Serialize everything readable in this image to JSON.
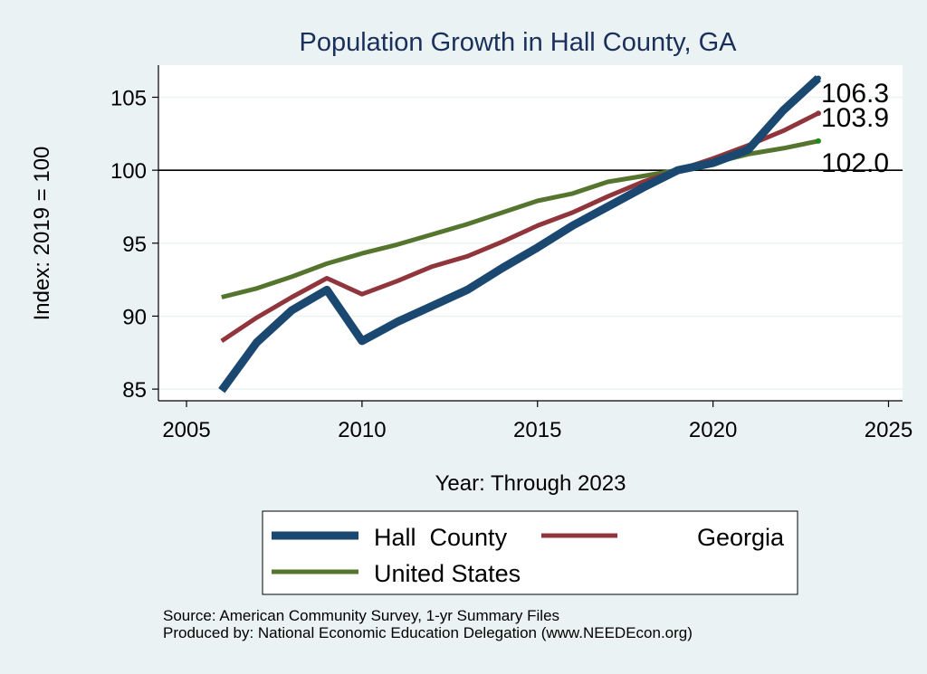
{
  "chart_data": {
    "type": "line",
    "title": "Population Growth in Hall County, GA",
    "xlabel": "Year: Through 2023",
    "ylabel": "Index: 2019 = 100",
    "xlim": [
      2004.2,
      2025.4
    ],
    "ylim": [
      84.2,
      107.2
    ],
    "xticks": [
      2005,
      2010,
      2015,
      2020,
      2025
    ],
    "yticks": [
      85,
      90,
      95,
      100,
      105
    ],
    "reference_line": 100,
    "grid": true,
    "legend_placement": "bottom",
    "x": [
      2006,
      2007,
      2008,
      2009,
      2010,
      2011,
      2012,
      2013,
      2014,
      2015,
      2016,
      2017,
      2018,
      2019,
      2020,
      2021,
      2022,
      2023
    ],
    "series": [
      {
        "name": "Hall  County",
        "color": "#1a4870",
        "values": [
          84.9,
          88.2,
          90.4,
          91.8,
          88.3,
          89.6,
          90.7,
          91.8,
          93.3,
          94.7,
          96.2,
          97.5,
          98.8,
          100.0,
          100.5,
          101.4,
          104.1,
          106.3
        ],
        "end_label": "106.3"
      },
      {
        "name": "Georgia",
        "color": "#90353b",
        "values": [
          88.3,
          89.9,
          91.3,
          92.6,
          91.5,
          92.4,
          93.4,
          94.1,
          95.1,
          96.2,
          97.1,
          98.2,
          99.2,
          100.0,
          100.8,
          101.7,
          102.7,
          103.9
        ],
        "end_label": "103.9"
      },
      {
        "name": "United States",
        "color": "#55752f",
        "values": [
          91.3,
          91.9,
          92.7,
          93.6,
          94.3,
          94.9,
          95.6,
          96.3,
          97.1,
          97.9,
          98.4,
          99.2,
          99.6,
          100.0,
          100.5,
          101.1,
          101.5,
          102.0
        ],
        "end_label": "102.0"
      }
    ],
    "notes": [
      "Source: American Community Survey, 1-yr Summary Files",
      "Produced by: National Economic Education Delegation (www.NEEDEcon.org)"
    ]
  }
}
